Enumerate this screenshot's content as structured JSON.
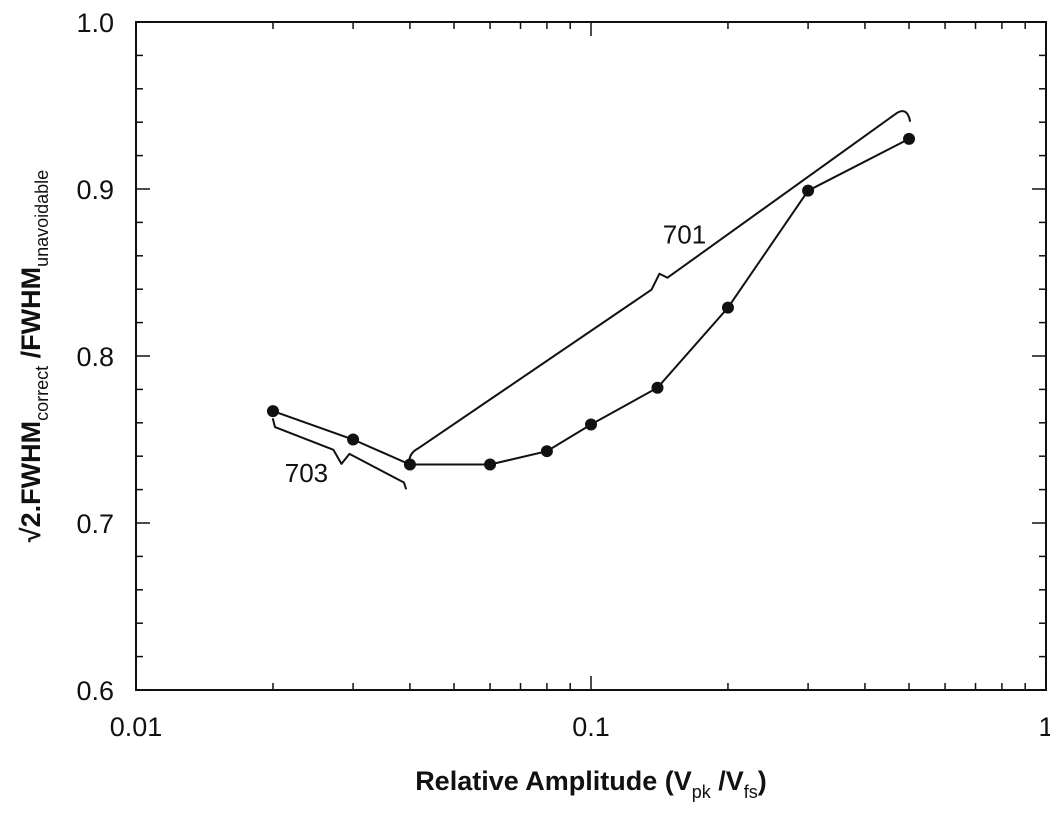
{
  "chart_data": {
    "type": "line",
    "title": "",
    "xlabel": {
      "prefix": "Relative Amplitude (V",
      "sub1": "pk",
      "middle": " /V",
      "sub2": "fs",
      "suffix": ")"
    },
    "ylabel": {
      "prefix": "√2.FWHM",
      "sub1": "correct",
      "middle": " /FWHM",
      "sub2": "unavoidable"
    },
    "xscale": "log",
    "xlim": [
      0.01,
      1
    ],
    "ylim": [
      0.6,
      1.0
    ],
    "x_ticks": [
      0.01,
      0.1,
      1
    ],
    "x_tick_labels": [
      "0.01",
      "0.1",
      "1"
    ],
    "y_ticks": [
      0.6,
      0.7,
      0.8,
      0.9,
      1.0
    ],
    "y_tick_labels": [
      "0.6",
      "0.7",
      "0.8",
      "0.9",
      "1.0"
    ],
    "grid": false,
    "legend": "none",
    "series": [
      {
        "x": [
          0.02,
          0.03,
          0.04,
          0.06,
          0.08,
          0.1,
          0.14,
          0.2,
          0.3,
          0.5
        ],
        "y": [
          0.767,
          0.75,
          0.735,
          0.735,
          0.743,
          0.759,
          0.781,
          0.829,
          0.899,
          0.93
        ]
      }
    ],
    "annotations": [
      {
        "text": "701",
        "target": "range",
        "x_range": [
          0.04,
          0.5
        ]
      },
      {
        "text": "703",
        "target": "range",
        "x_range": [
          0.02,
          0.04
        ]
      }
    ],
    "color": "#111111"
  }
}
